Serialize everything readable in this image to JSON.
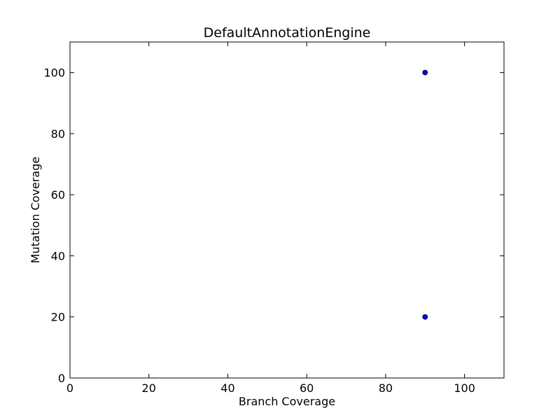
{
  "chart_data": {
    "type": "scatter",
    "title": "DefaultAnnotationEngine",
    "xlabel": "Branch Coverage",
    "ylabel": "Mutation Coverage",
    "xlim": [
      0,
      110
    ],
    "ylim": [
      0,
      110
    ],
    "xticks": [
      0,
      20,
      40,
      60,
      80,
      100
    ],
    "yticks": [
      0,
      20,
      40,
      60,
      80,
      100
    ],
    "grid": false,
    "series": [
      {
        "x": [
          90,
          90
        ],
        "y": [
          100,
          20
        ],
        "color": "#0000ff"
      }
    ]
  }
}
